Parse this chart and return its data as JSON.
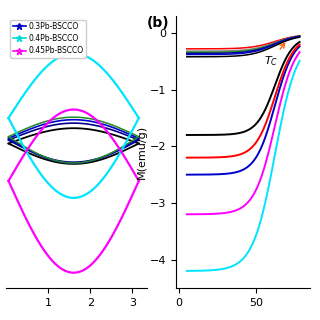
{
  "panel_a": {
    "xlim": [
      0,
      3.35
    ],
    "xticks": [
      1,
      2,
      3
    ],
    "legend_labels": [
      "0.3Pb-BSCCO",
      "0.4Pb-BSCCO",
      "0.45Pb-BSCCO"
    ],
    "legend_line_colors": [
      "#0000cc",
      "#00dddd",
      "#ff00ff"
    ],
    "legend_marker_colors": [
      "#00008b",
      "#00cccc",
      "#ccaa00"
    ]
  },
  "panel_b": {
    "label": "(b)",
    "ylabel": "M(emu/g)",
    "xlim": [
      -2,
      85
    ],
    "ylim": [
      -4.5,
      0.3
    ],
    "xticks": [
      0,
      50
    ],
    "yticks": [
      0,
      -1,
      -2,
      -3,
      -4
    ]
  },
  "colors": {
    "black": "#000000",
    "navy": "#00008b",
    "blue": "#0000cd",
    "green": "#006400",
    "dkgreen": "#228b22",
    "cyan": "#00e5ff",
    "magenta": "#ff00ff",
    "red": "#ff0000",
    "gray": "#888888",
    "orange": "#ff6600"
  }
}
